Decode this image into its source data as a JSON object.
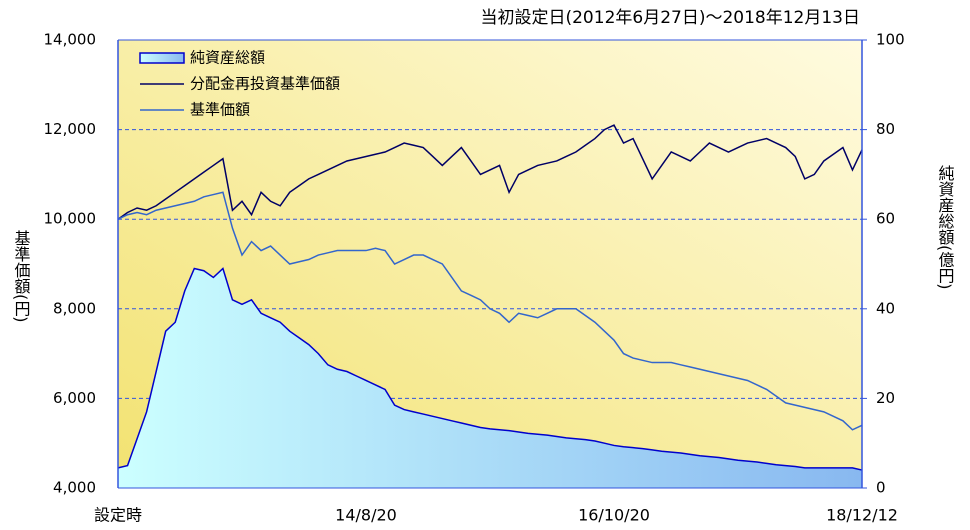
{
  "chart_data": {
    "type": "line",
    "title": "当初設定日(2012年6月27日)～2018年12月13日",
    "ylabel": "基準価額(円)",
    "y2label": "純資産総額(億円)",
    "categories": [
      "設定時",
      null,
      null,
      null,
      null,
      null,
      null,
      null,
      null,
      null,
      null,
      null,
      null,
      null,
      null,
      null,
      null,
      null,
      null,
      null,
      null,
      null,
      null,
      null,
      null,
      null,
      "14/8/20",
      null,
      null,
      null,
      null,
      null,
      null,
      null,
      null,
      null,
      null,
      null,
      null,
      null,
      null,
      null,
      null,
      null,
      null,
      null,
      null,
      null,
      null,
      null,
      null,
      null,
      "16/10/20",
      null,
      null,
      null,
      null,
      null,
      null,
      null,
      null,
      null,
      null,
      null,
      null,
      null,
      null,
      null,
      null,
      null,
      null,
      null,
      null,
      null,
      null,
      null,
      null,
      null,
      "18/12/12"
    ],
    "series": [
      {
        "name": "純資産総額",
        "type": "area",
        "axis": "y2",
        "color": "#0000cc",
        "values": [
          4.5,
          5,
          11,
          17,
          26,
          35,
          37,
          44,
          49,
          48.5,
          47,
          49,
          42,
          41,
          42,
          39,
          38,
          37,
          35,
          33.5,
          32,
          30,
          27.5,
          26.5,
          26,
          25,
          24,
          23,
          22,
          18.5,
          17.5,
          17,
          16.5,
          16,
          15.5,
          15,
          14.5,
          14,
          13.5,
          13.2,
          13,
          12.8,
          12.5,
          12.2,
          12,
          11.8,
          11.5,
          11.2,
          11,
          10.8,
          10.5,
          10,
          9.5,
          9.2,
          9,
          8.8,
          8.5,
          8.2,
          8,
          7.8,
          7.5,
          7.2,
          7,
          6.8,
          6.5,
          6.2,
          6,
          5.8,
          5.5,
          5.2,
          5,
          4.8,
          4.5,
          4.5,
          4.5,
          4.5,
          4.5,
          4.5,
          4
        ]
      },
      {
        "name": "分配金再投資基準価額",
        "type": "line",
        "color": "#000066",
        "values": [
          10000,
          10150,
          10250,
          10200,
          10300,
          10450,
          10600,
          10750,
          10900,
          11050,
          11200,
          11350,
          10200,
          10400,
          10100,
          10600,
          10400,
          10300,
          10600,
          10750,
          10900,
          11000,
          11100,
          11200,
          11300,
          11350,
          11400,
          11450,
          11500,
          11600,
          11700,
          11650,
          11600,
          11400,
          11200,
          11400,
          11600,
          11300,
          11000,
          11100,
          11200,
          10600,
          11000,
          11100,
          11200,
          11250,
          11300,
          11400,
          11500,
          11650,
          11800,
          12000,
          12100,
          11700,
          11800,
          11350,
          10900,
          11200,
          11500,
          11400,
          11300,
          11500,
          11700,
          11600,
          11500,
          11600,
          11700,
          11750,
          11800,
          11700,
          11600,
          11400,
          10900,
          11000,
          11300,
          11450,
          11600,
          11100,
          11550
        ]
      },
      {
        "name": "基準価額",
        "type": "line",
        "color": "#3366cc",
        "values": [
          10000,
          10100,
          10150,
          10100,
          10200,
          10250,
          10300,
          10350,
          10400,
          10500,
          10550,
          10600,
          9800,
          9200,
          9500,
          9300,
          9400,
          9200,
          9000,
          9050,
          9100,
          9200,
          9250,
          9300,
          9300,
          9300,
          9300,
          9350,
          9300,
          9000,
          9100,
          9200,
          9200,
          9100,
          9000,
          8700,
          8400,
          8300,
          8200,
          8000,
          7900,
          7700,
          7900,
          7850,
          7800,
          7900,
          8000,
          8000,
          8000,
          7850,
          7700,
          7500,
          7300,
          7000,
          6900,
          6850,
          6800,
          6800,
          6800,
          6750,
          6700,
          6650,
          6600,
          6550,
          6500,
          6450,
          6400,
          6300,
          6200,
          6050,
          5900,
          5850,
          5800,
          5750,
          5700,
          5600,
          5500,
          5300,
          5400
        ]
      }
    ],
    "ylim": [
      4000,
      14000
    ],
    "yticks": [
      {
        "value": 4000,
        "label": "4,000"
      },
      {
        "value": 6000,
        "label": "6,000"
      },
      {
        "value": 8000,
        "label": "8,000"
      },
      {
        "value": 10000,
        "label": "10,000"
      },
      {
        "value": 12000,
        "label": "12,000"
      },
      {
        "value": 14000,
        "label": "14,000"
      }
    ],
    "y2lim": [
      0,
      100
    ],
    "y2ticks": [
      0,
      20,
      40,
      60,
      80,
      100
    ],
    "grid": true,
    "legend": "upper left"
  }
}
